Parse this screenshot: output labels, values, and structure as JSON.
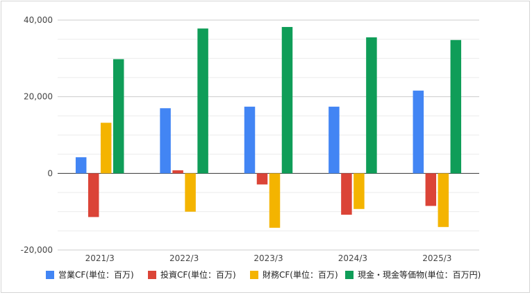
{
  "chart_data": {
    "type": "bar",
    "categories": [
      "2021/3",
      "2022/3",
      "2023/3",
      "2024/3",
      "2025/3"
    ],
    "series": [
      {
        "name": "営業CF(単位：百万)",
        "color": "#4285f4",
        "values": [
          4200,
          17000,
          17400,
          17400,
          21600
        ]
      },
      {
        "name": "投資CF(単位：百万)",
        "color": "#db4437",
        "values": [
          -11400,
          800,
          -2900,
          -10800,
          -8500
        ]
      },
      {
        "name": "財務CF(単位：百万)",
        "color": "#f4b400",
        "values": [
          13200,
          -10000,
          -14200,
          -9300,
          -14000
        ]
      },
      {
        "name": "現金・現金等価物(単位：百万円)",
        "color": "#0f9d58",
        "values": [
          29800,
          37800,
          38200,
          35500,
          34800
        ]
      }
    ],
    "yticks": [
      -20000,
      0,
      20000,
      40000
    ],
    "ytick_labels": [
      "-20,000",
      "0",
      "20,000",
      "40,000"
    ],
    "ylim": [
      -20000,
      40000
    ],
    "minor_grid_step": 5000,
    "legend_position": "bottom",
    "grid": true
  }
}
